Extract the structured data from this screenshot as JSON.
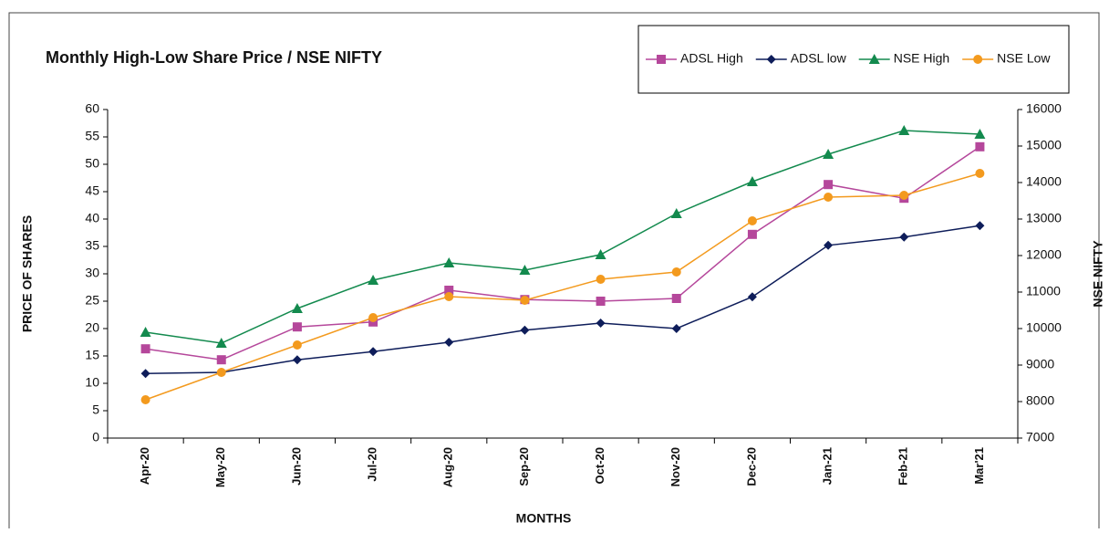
{
  "chart_data": {
    "type": "line",
    "title": "Monthly High-Low Share Price / NSE NIFTY",
    "x_label": "MONTHS",
    "y_label": "PRICE OF SHARES",
    "y2_label": "NSE NIFTY",
    "categories": [
      "Apr-20",
      "May-20",
      "Jun-20",
      "Jul-20",
      "Aug-20",
      "Sep-20",
      "Oct-20",
      "Nov-20",
      "Dec-20",
      "Jan-21",
      "Feb-21",
      "Mar'21"
    ],
    "series": [
      {
        "name": "ADSL High",
        "color": "#b5479b",
        "marker": "square",
        "values": [
          16.3,
          14.3,
          20.3,
          21.2,
          27,
          25.3,
          25,
          25.5,
          37.2,
          46.3,
          43.8,
          53.2
        ]
      },
      {
        "name": "ADSL low",
        "color": "#0e1d5a",
        "marker": "diamond",
        "values": [
          11.8,
          12,
          14.3,
          15.8,
          17.5,
          19.7,
          21,
          20,
          25.8,
          35.2,
          36.7,
          38.8
        ]
      },
      {
        "name": "NSE High",
        "color": "#138a4e",
        "marker": "triangle",
        "axis": "y2",
        "values": [
          9900,
          9600,
          10550,
          11325,
          11800,
          11600,
          12025,
          13150,
          14025,
          14775,
          15425,
          15325
        ]
      },
      {
        "name": "NSE Low",
        "color": "#f39a1e",
        "marker": "circle",
        "axis": "y2",
        "values": [
          8050,
          8800,
          9550,
          10300,
          10875,
          10775,
          11350,
          11550,
          12950,
          13600,
          13650,
          14250
        ]
      }
    ],
    "ylim": [
      0,
      60
    ],
    "yticks": [
      0,
      5,
      10,
      15,
      20,
      25,
      30,
      35,
      40,
      45,
      50,
      55,
      60
    ],
    "y2lim": [
      7000,
      16000
    ],
    "y2ticks": [
      7000,
      8000,
      9000,
      10000,
      11000,
      12000,
      13000,
      14000,
      15000,
      16000
    ],
    "legend": "top-right",
    "grid": false
  }
}
